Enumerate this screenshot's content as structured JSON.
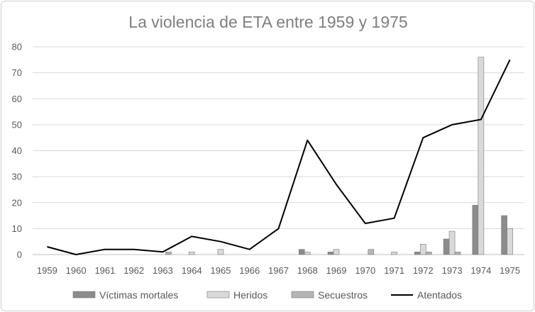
{
  "chart_data": {
    "type": "bar",
    "title": "La violencia de ETA entre 1959 y 1975",
    "xlabel": "",
    "ylabel": "",
    "ylim": [
      0,
      80
    ],
    "y_ticks": [
      "0",
      "10",
      "20",
      "30",
      "40",
      "50",
      "60",
      "70",
      "80"
    ],
    "grid": true,
    "legend_position": "bottom",
    "categories": [
      "1959",
      "1960",
      "1961",
      "1962",
      "1963",
      "1964",
      "1965",
      "1966",
      "1967",
      "1968",
      "1969",
      "1970",
      "1971",
      "1972",
      "1973",
      "1974",
      "1975"
    ],
    "series": [
      {
        "name": "Víctimas mortales",
        "kind": "bar",
        "color": "#8c8c8c",
        "values": [
          0,
          0,
          0,
          0,
          0,
          0,
          0,
          0,
          0,
          2,
          1,
          0,
          0,
          1,
          6,
          19,
          15
        ]
      },
      {
        "name": "Heridos",
        "kind": "bar",
        "color": "#d9d9d9",
        "values": [
          0,
          0,
          0,
          0,
          0,
          1,
          2,
          0,
          0,
          1,
          2,
          0,
          1,
          4,
          9,
          76,
          10
        ]
      },
      {
        "name": "Secuestros",
        "kind": "bar",
        "color": "#b5b5b5",
        "values": [
          0,
          0,
          0,
          0,
          1,
          0,
          0,
          0,
          0,
          0,
          0,
          2,
          0,
          1,
          1,
          0,
          0
        ]
      },
      {
        "name": "Atentados",
        "kind": "line",
        "color": "#000000",
        "values": [
          3,
          0,
          2,
          2,
          1,
          7,
          5,
          2,
          10,
          44,
          27,
          12,
          14,
          45,
          50,
          52,
          75
        ]
      }
    ]
  }
}
